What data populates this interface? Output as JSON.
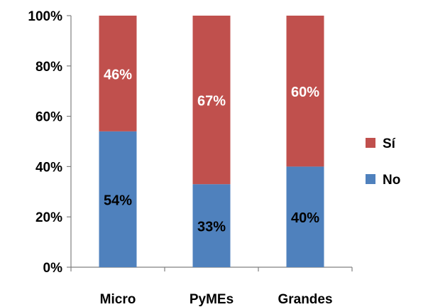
{
  "chart_data": {
    "type": "bar",
    "stacked": true,
    "percent": true,
    "categories": [
      "Micro",
      "PyMEs",
      "Grandes"
    ],
    "series": [
      {
        "name": "No",
        "values": [
          54,
          33,
          40
        ],
        "labels": [
          "54%",
          "33%",
          "40%"
        ],
        "color": "#4f81bd"
      },
      {
        "name": "Sí",
        "values": [
          46,
          67,
          60
        ],
        "labels": [
          "46%",
          "67%",
          "60%"
        ],
        "color": "#c0504d"
      }
    ],
    "title": "",
    "xlabel": "",
    "ylabel": "",
    "ylim": [
      0,
      100
    ],
    "yticks": [
      0,
      20,
      40,
      60,
      80,
      100
    ],
    "ytick_labels": [
      "0%",
      "20%",
      "40%",
      "60%",
      "80%",
      "100%"
    ],
    "grid": false,
    "legend": {
      "position": "right",
      "entries": [
        "Sí",
        "No"
      ]
    }
  }
}
